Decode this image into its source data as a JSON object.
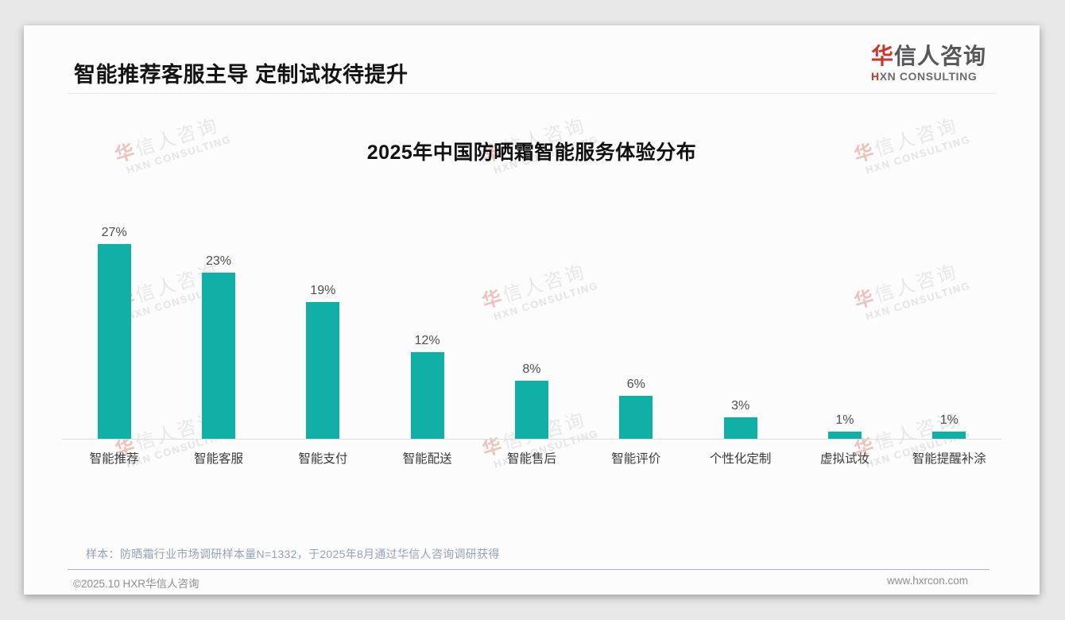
{
  "page": {
    "slide_title": "智能推荐客服主导 定制试妆待提升",
    "sample_note": "样本：防晒霜行业市场调研样本量N=1332，于2025年8月通过华信人咨询调研获得",
    "footer_left": "©2025.10 HXR华信人咨询",
    "footer_right": "www.hxrcon.com"
  },
  "brand": {
    "logo_cn_accent": "华",
    "logo_cn_rest": "信人咨询",
    "logo_en_accent": "H",
    "logo_en_rest": "XN CONSULTING",
    "accent_color": "#c8362c",
    "watermark_cn_accent": "华",
    "watermark_cn_rest": "信人咨询",
    "watermark_en": "HXN CONSULTING"
  },
  "chart_data": {
    "type": "bar",
    "title": "2025年中国防晒霜智能服务体验分布",
    "categories": [
      "智能推荐",
      "智能客服",
      "智能支付",
      "智能配送",
      "智能售后",
      "智能评价",
      "个性化定制",
      "虚拟试妆",
      "智能提醒补涂"
    ],
    "values": [
      27,
      23,
      19,
      12,
      8,
      6,
      3,
      1,
      1
    ],
    "value_labels": [
      "27%",
      "23%",
      "19%",
      "12%",
      "8%",
      "6%",
      "3%",
      "1%",
      "1%"
    ],
    "unit": "%",
    "xlabel": "",
    "ylabel": "",
    "ylim": [
      0,
      30
    ],
    "bar_color": "#11b0a7",
    "grid": false,
    "legend": false,
    "value_label_position": "above"
  }
}
